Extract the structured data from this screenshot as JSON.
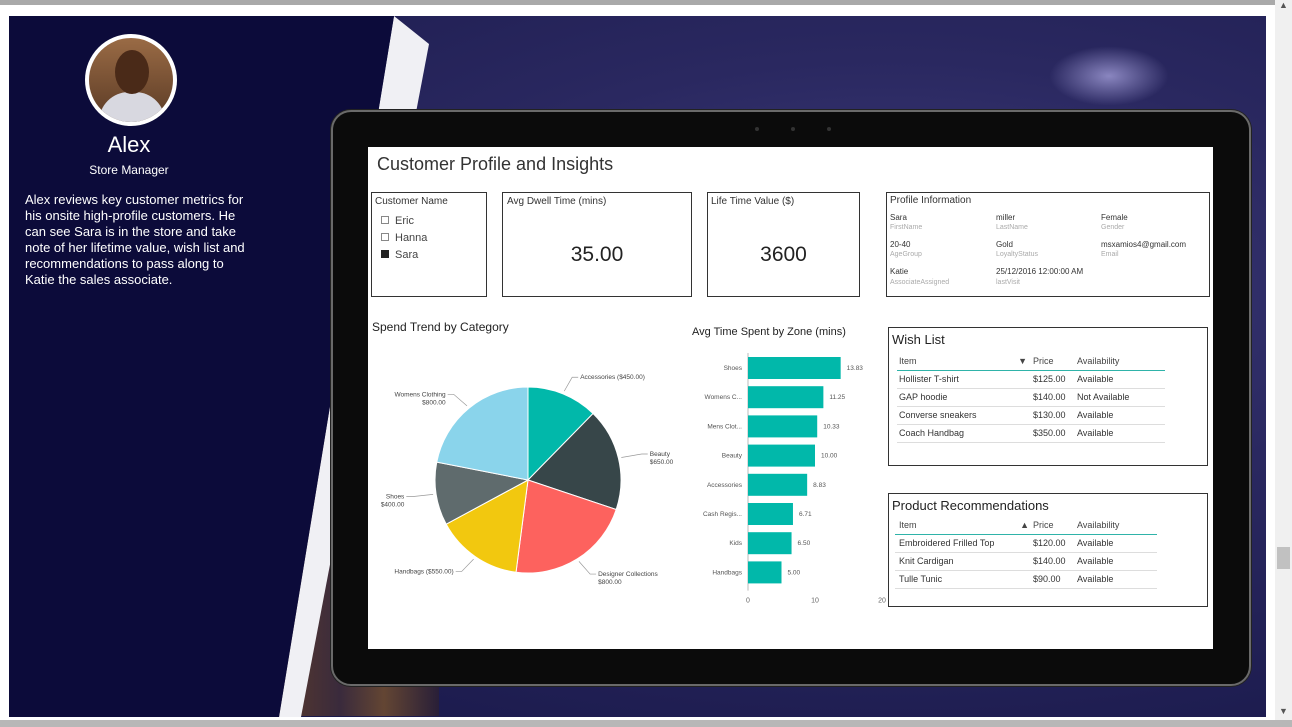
{
  "persona": {
    "name": "Alex",
    "role": "Store Manager",
    "description": "Alex reviews key customer metrics for his onsite high-profile customers. He can see Sara is in the store and take note of her lifetime value, wish list and recommendations to pass along to Katie the sales associate."
  },
  "dashboard": {
    "title": "Customer Profile and Insights",
    "slicer": {
      "title": "Customer Name",
      "items": [
        {
          "label": "Eric",
          "checked": false
        },
        {
          "label": "Hanna",
          "checked": false
        },
        {
          "label": "Sara",
          "checked": true
        }
      ]
    },
    "dwell": {
      "title": "Avg Dwell Time (mins)",
      "value": "35.00"
    },
    "ltv": {
      "title": "Life Time Value ($)",
      "value": "3600"
    },
    "profile": {
      "title": "Profile Information",
      "fields": [
        {
          "value": "Sara",
          "label": "FirstName"
        },
        {
          "value": "miller",
          "label": "LastName"
        },
        {
          "value": "Female",
          "label": "Gender"
        },
        {
          "value": "20-40",
          "label": "AgeGroup"
        },
        {
          "value": "Gold",
          "label": "LoyaltyStatus"
        },
        {
          "value": "msxamios4@gmail.com",
          "label": "Email"
        },
        {
          "value": "Katie",
          "label": "AssociateAssigned"
        },
        {
          "value": "25/12/2016 12:00:00 AM",
          "label": "lastVisit"
        }
      ]
    },
    "wishlist": {
      "title": "Wish List",
      "headers": {
        "item": "Item",
        "price": "Price",
        "availability": "Availability"
      },
      "rows": [
        {
          "item": "Hollister T-shirt",
          "price": "$125.00",
          "availability": "Available"
        },
        {
          "item": "GAP hoodie",
          "price": "$140.00",
          "availability": "Not Available"
        },
        {
          "item": "Converse sneakers",
          "price": "$130.00",
          "availability": "Available"
        },
        {
          "item": "Coach Handbag",
          "price": "$350.00",
          "availability": "Available"
        }
      ]
    },
    "recommendations": {
      "title": "Product Recommendations",
      "headers": {
        "item": "Item",
        "price": "Price",
        "availability": "Availability"
      },
      "rows": [
        {
          "item": "Embroidered Frilled Top",
          "price": "$120.00",
          "availability": "Available"
        },
        {
          "item": "Knit Cardigan",
          "price": "$140.00",
          "availability": "Available"
        },
        {
          "item": "Tulle Tunic",
          "price": "$90.00",
          "availability": "Available"
        }
      ]
    }
  },
  "chart_data": [
    {
      "type": "pie",
      "title": "Spend Trend by Category",
      "slices": [
        {
          "label": "Accessories ($450.00)",
          "value": 450,
          "color": "#01b8aa"
        },
        {
          "label": "Beauty",
          "value_label": "$650.00",
          "value": 650,
          "color": "#374649"
        },
        {
          "label": "Designer Collections",
          "value_label": "$800.00",
          "value": 800,
          "color": "#fd625e"
        },
        {
          "label": "Handbags ($550.00)",
          "value": 550,
          "color": "#f2c80f"
        },
        {
          "label": "Shoes",
          "value_label": "$400.00",
          "value": 400,
          "color": "#5f6b6d"
        },
        {
          "label": "Womens Clothing",
          "value_label": "$800.00",
          "value": 800,
          "color": "#8ad4eb"
        }
      ]
    },
    {
      "type": "bar",
      "orientation": "horizontal",
      "title": "Avg Time Spent by Zone (mins)",
      "categories": [
        "Shoes",
        "Womens C...",
        "Mens Clot...",
        "Beauty",
        "Accessories",
        "Cash Regis...",
        "Kids",
        "Handbags"
      ],
      "values": [
        13.83,
        11.25,
        10.33,
        10.0,
        8.83,
        6.71,
        6.5,
        5.0
      ],
      "value_labels": [
        "13.83",
        "11.25",
        "10.33",
        "10.00",
        "8.83",
        "6.71",
        "6.50",
        "5.00"
      ],
      "xlim": [
        0,
        20
      ],
      "xticks": [
        "0",
        "10",
        "20"
      ],
      "color": "#01b8aa"
    }
  ],
  "colors": {
    "accent": "#01b8aa",
    "navy": "#0c0b3a"
  },
  "scrollbar": {
    "up_icon": "▲",
    "down_icon": "▼"
  }
}
